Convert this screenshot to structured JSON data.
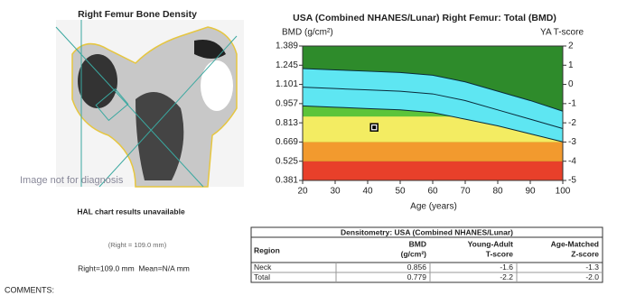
{
  "scan": {
    "title": "Right Femur Bone Density",
    "watermark": "Image not for diagnosis"
  },
  "hal": "HAL chart results unavailable",
  "hal_detail": "(Right = 109.0 mm)",
  "hal_summary": "Right=109.0 mm  Mean=N/A mm",
  "comments": "COMMENTS:",
  "chart_data": {
    "type": "reference-curve",
    "title": "USA (Combined NHANES/Lunar) Right Femur: Total (BMD)",
    "y_label": "BMD (g/cm²)",
    "y2_label": "YA T-score",
    "x_label": "Age (years)",
    "xlim": [
      20,
      100
    ],
    "xticks": [
      20,
      30,
      40,
      50,
      60,
      70,
      80,
      90,
      100
    ],
    "ylim": [
      0.381,
      1.389
    ],
    "yticks": [
      1.389,
      1.245,
      1.101,
      0.957,
      0.813,
      0.669,
      0.525,
      0.381
    ],
    "y2lim": [
      -5,
      2
    ],
    "y2ticks": [
      2,
      1,
      0,
      -1,
      -2,
      -3,
      -4,
      -5
    ],
    "background": "#2e8b2b",
    "fill_below_lower": "#5cc43a",
    "band_fill": "#5ee6f2",
    "bands": [
      {
        "from": 0.381,
        "to": 0.525,
        "color": "#e8402a"
      },
      {
        "from": 0.525,
        "to": 0.669,
        "color": "#f29a2e"
      },
      {
        "from": 0.669,
        "to": 0.86,
        "color": "#f3ec62"
      }
    ],
    "x": [
      20,
      30,
      40,
      50,
      60,
      70,
      80,
      90,
      100
    ],
    "series": [
      {
        "color": "#0a2a3a",
        "values": [
          1.22,
          1.21,
          1.2,
          1.19,
          1.17,
          1.12,
          1.05,
          0.98,
          0.9
        ]
      },
      {
        "color": "#0a2a3a",
        "values": [
          1.08,
          1.07,
          1.06,
          1.05,
          1.03,
          0.98,
          0.91,
          0.84,
          0.77
        ]
      },
      {
        "color": "#0a2a3a",
        "values": [
          0.94,
          0.93,
          0.92,
          0.91,
          0.89,
          0.84,
          0.79,
          0.73,
          0.67
        ]
      }
    ],
    "point": {
      "x": 42,
      "y": 0.779
    }
  },
  "table": {
    "title": "Densitometry: USA (Combined NHANES/Lunar)",
    "header": [
      "Region",
      "BMD\n(g/cm²)",
      "Young-Adult\nT-score",
      "Age-Matched\nZ-score"
    ],
    "rows": [
      [
        "Neck",
        "0.856",
        "-1.6",
        "-1.3"
      ],
      [
        "Total",
        "0.779",
        "-2.2",
        "-2.0"
      ]
    ]
  }
}
